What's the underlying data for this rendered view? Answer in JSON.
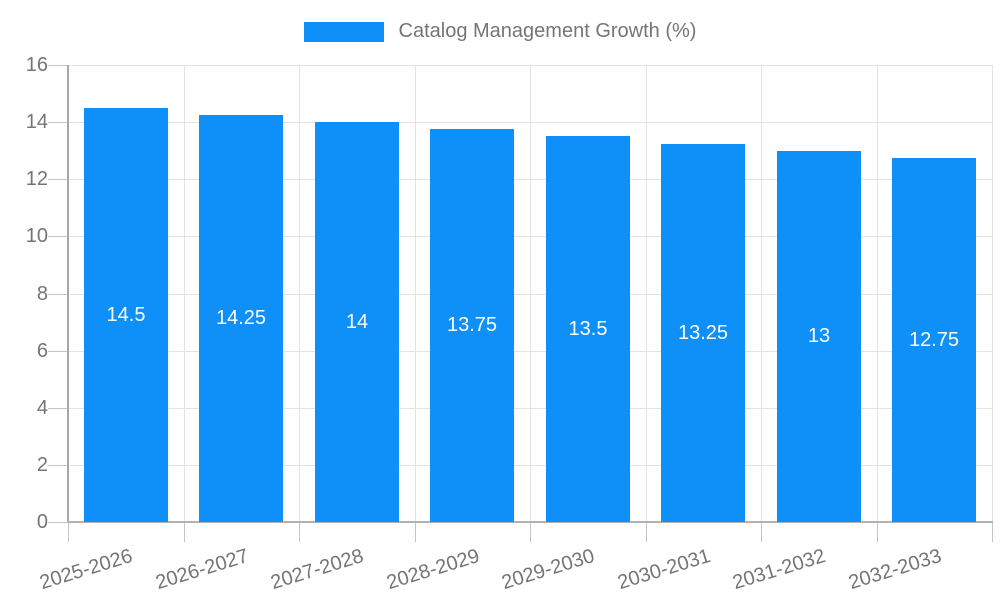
{
  "legend": {
    "label": "Catalog Management Growth (%)",
    "swatch_color": "#0e90f8"
  },
  "chart_data": {
    "type": "bar",
    "title": "Catalog Management Growth (%)",
    "categories": [
      "2025-2026",
      "2026-2027",
      "2027-2028",
      "2028-2029",
      "2029-2030",
      "2030-2031",
      "2031-2032",
      "2032-2033"
    ],
    "series": [
      {
        "name": "Catalog Management Growth (%)",
        "values": [
          14.5,
          14.25,
          14,
          13.75,
          13.5,
          13.25,
          13,
          12.75
        ]
      }
    ],
    "value_labels": [
      "14.5",
      "14.25",
      "14",
      "13.75",
      "13.5",
      "13.25",
      "13",
      "12.75"
    ],
    "xlabel": "",
    "ylabel": "",
    "ylim": [
      0,
      16
    ],
    "yticks": [
      0,
      2,
      4,
      6,
      8,
      10,
      12,
      14,
      16
    ],
    "grid": true,
    "legend_position": "top",
    "bar_color": "#0e90f8",
    "bar_label_color": "#ffffff",
    "axis_text_color": "#757575",
    "gridline_color": "#e3e3e3",
    "axis_line_color": "#b3b3b3"
  }
}
